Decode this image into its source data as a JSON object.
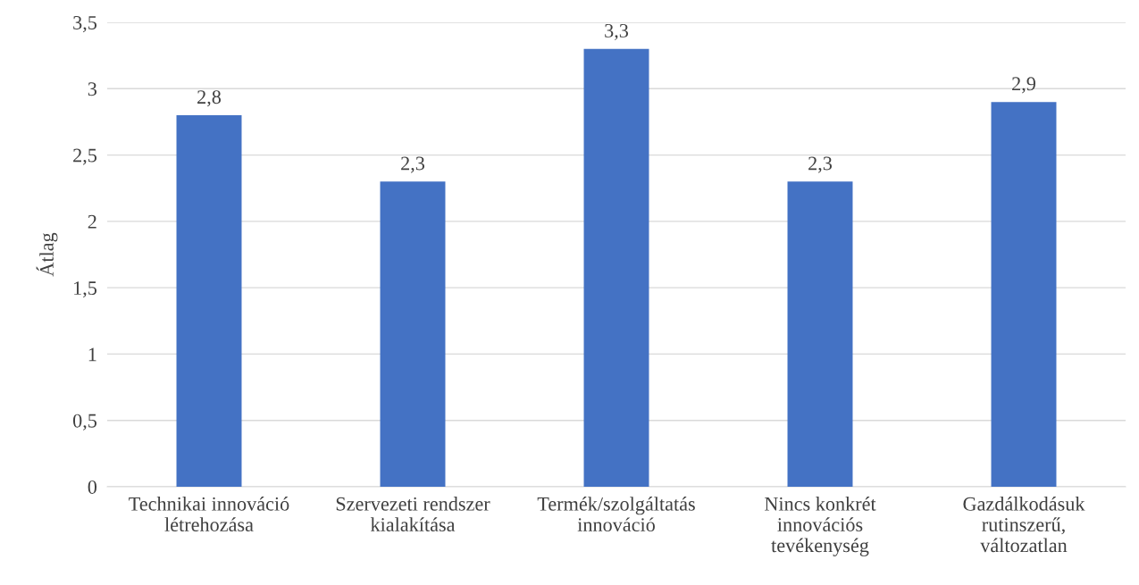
{
  "chart_data": {
    "type": "bar",
    "ylabel": "Átlag",
    "categories": [
      "Technikai innováció\nlétrehozása",
      "Szervezeti rendszer\nkialakítása",
      "Termék/szolgáltatás\ninnováció",
      "Nincs konkrét\ninnovációs\ntevékenység",
      "Gazdálkodásuk\nrutinszerű,\nváltozatlan"
    ],
    "values": [
      2.8,
      2.3,
      3.3,
      2.3,
      2.9
    ],
    "value_labels": [
      "2,8",
      "2,3",
      "3,3",
      "2,3",
      "2,9"
    ],
    "color": "#4472c4",
    "ylim": [
      0,
      3.5
    ],
    "yticks": [
      0,
      {
        "value": 0.5,
        "label": "0,5"
      },
      1,
      {
        "value": 1.5,
        "label": "1,5"
      },
      2,
      {
        "value": 2.5,
        "label": "2,5"
      },
      3,
      {
        "value": 3.5,
        "label": "3,5"
      }
    ],
    "grid": "y"
  }
}
